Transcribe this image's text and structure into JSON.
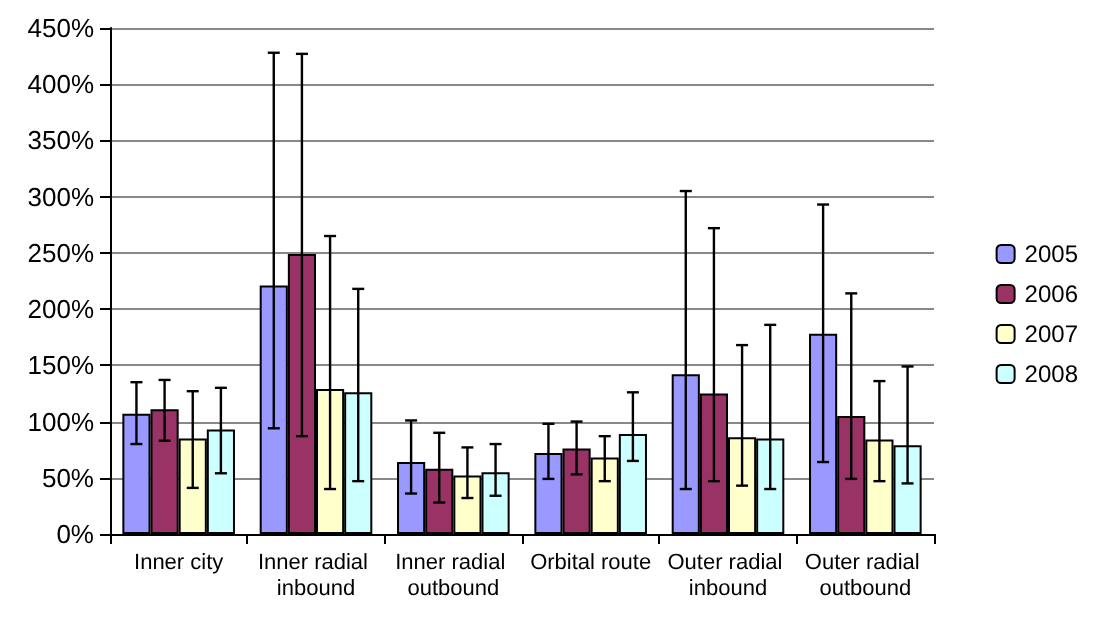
{
  "chart_data": {
    "type": "bar",
    "categories": [
      "Inner city",
      "Inner radial inbound",
      "Inner radial outbound",
      "Orbital route",
      "Outer radial inbound",
      "Outer radial outbound"
    ],
    "series": [
      {
        "name": "2005",
        "color": "#9999ff",
        "values": [
          107,
          221,
          64,
          72,
          142,
          178
        ],
        "errors": [
          [
            80,
            135
          ],
          [
            94,
            428
          ],
          [
            36,
            101
          ],
          [
            49,
            98
          ],
          [
            40,
            305
          ],
          [
            64,
            293
          ]
        ]
      },
      {
        "name": "2006",
        "color": "#993366",
        "values": [
          111,
          249,
          58,
          76,
          125,
          105
        ],
        "errors": [
          [
            83,
            137
          ],
          [
            87,
            427
          ],
          [
            28,
            90
          ],
          [
            53,
            100
          ],
          [
            47,
            272
          ],
          [
            49,
            214
          ]
        ]
      },
      {
        "name": "2007",
        "color": "#ffffcc",
        "values": [
          85,
          129,
          52,
          68,
          86,
          84
        ],
        "errors": [
          [
            41,
            127
          ],
          [
            40,
            265
          ],
          [
            32,
            77
          ],
          [
            47,
            87
          ],
          [
            43,
            168
          ],
          [
            47,
            136
          ]
        ]
      },
      {
        "name": "2008",
        "color": "#ccffff",
        "values": [
          93,
          126,
          55,
          89,
          85,
          79
        ],
        "errors": [
          [
            54,
            130
          ],
          [
            47,
            218
          ],
          [
            34,
            80
          ],
          [
            65,
            126
          ],
          [
            40,
            186
          ],
          [
            45,
            149
          ]
        ]
      }
    ],
    "ylim": [
      0,
      450
    ],
    "yticks": [
      {
        "value": 0,
        "label": "0%"
      },
      {
        "value": 50,
        "label": "50%"
      },
      {
        "value": 100,
        "label": "100%"
      },
      {
        "value": 150,
        "label": "150%"
      },
      {
        "value": 200,
        "label": "200%"
      },
      {
        "value": 250,
        "label": "250%"
      },
      {
        "value": 300,
        "label": "300%"
      },
      {
        "value": 350,
        "label": "350%"
      },
      {
        "value": 400,
        "label": "400%"
      },
      {
        "value": 450,
        "label": "450%"
      }
    ],
    "grid": "y",
    "legend": "right"
  }
}
